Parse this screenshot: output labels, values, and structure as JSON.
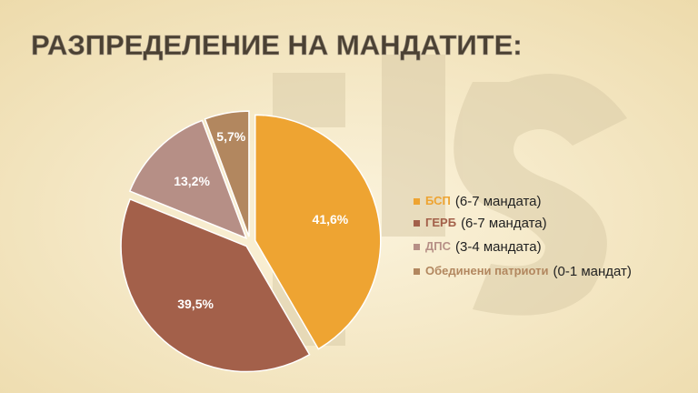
{
  "chart_data": {
    "type": "pie",
    "title": "РАЗПРЕДЕЛЕНИЕ НА МАНДАТИТЕ:",
    "categories": [
      "БСП",
      "ГЕРБ",
      "ДПС",
      "Обединени патриоти"
    ],
    "legend_notes": [
      "(6-7 мандата)",
      "(6-7 мандата)",
      "(3-4 мандата)",
      "(0-1 мандат)"
    ],
    "values": [
      41.6,
      39.5,
      13.2,
      5.7
    ],
    "value_labels": [
      "41,6%",
      "39,5%",
      "13,2%",
      "5,7%"
    ],
    "colors": [
      "#eea432",
      "#a3604a",
      "#b68f86",
      "#b2875f"
    ]
  }
}
